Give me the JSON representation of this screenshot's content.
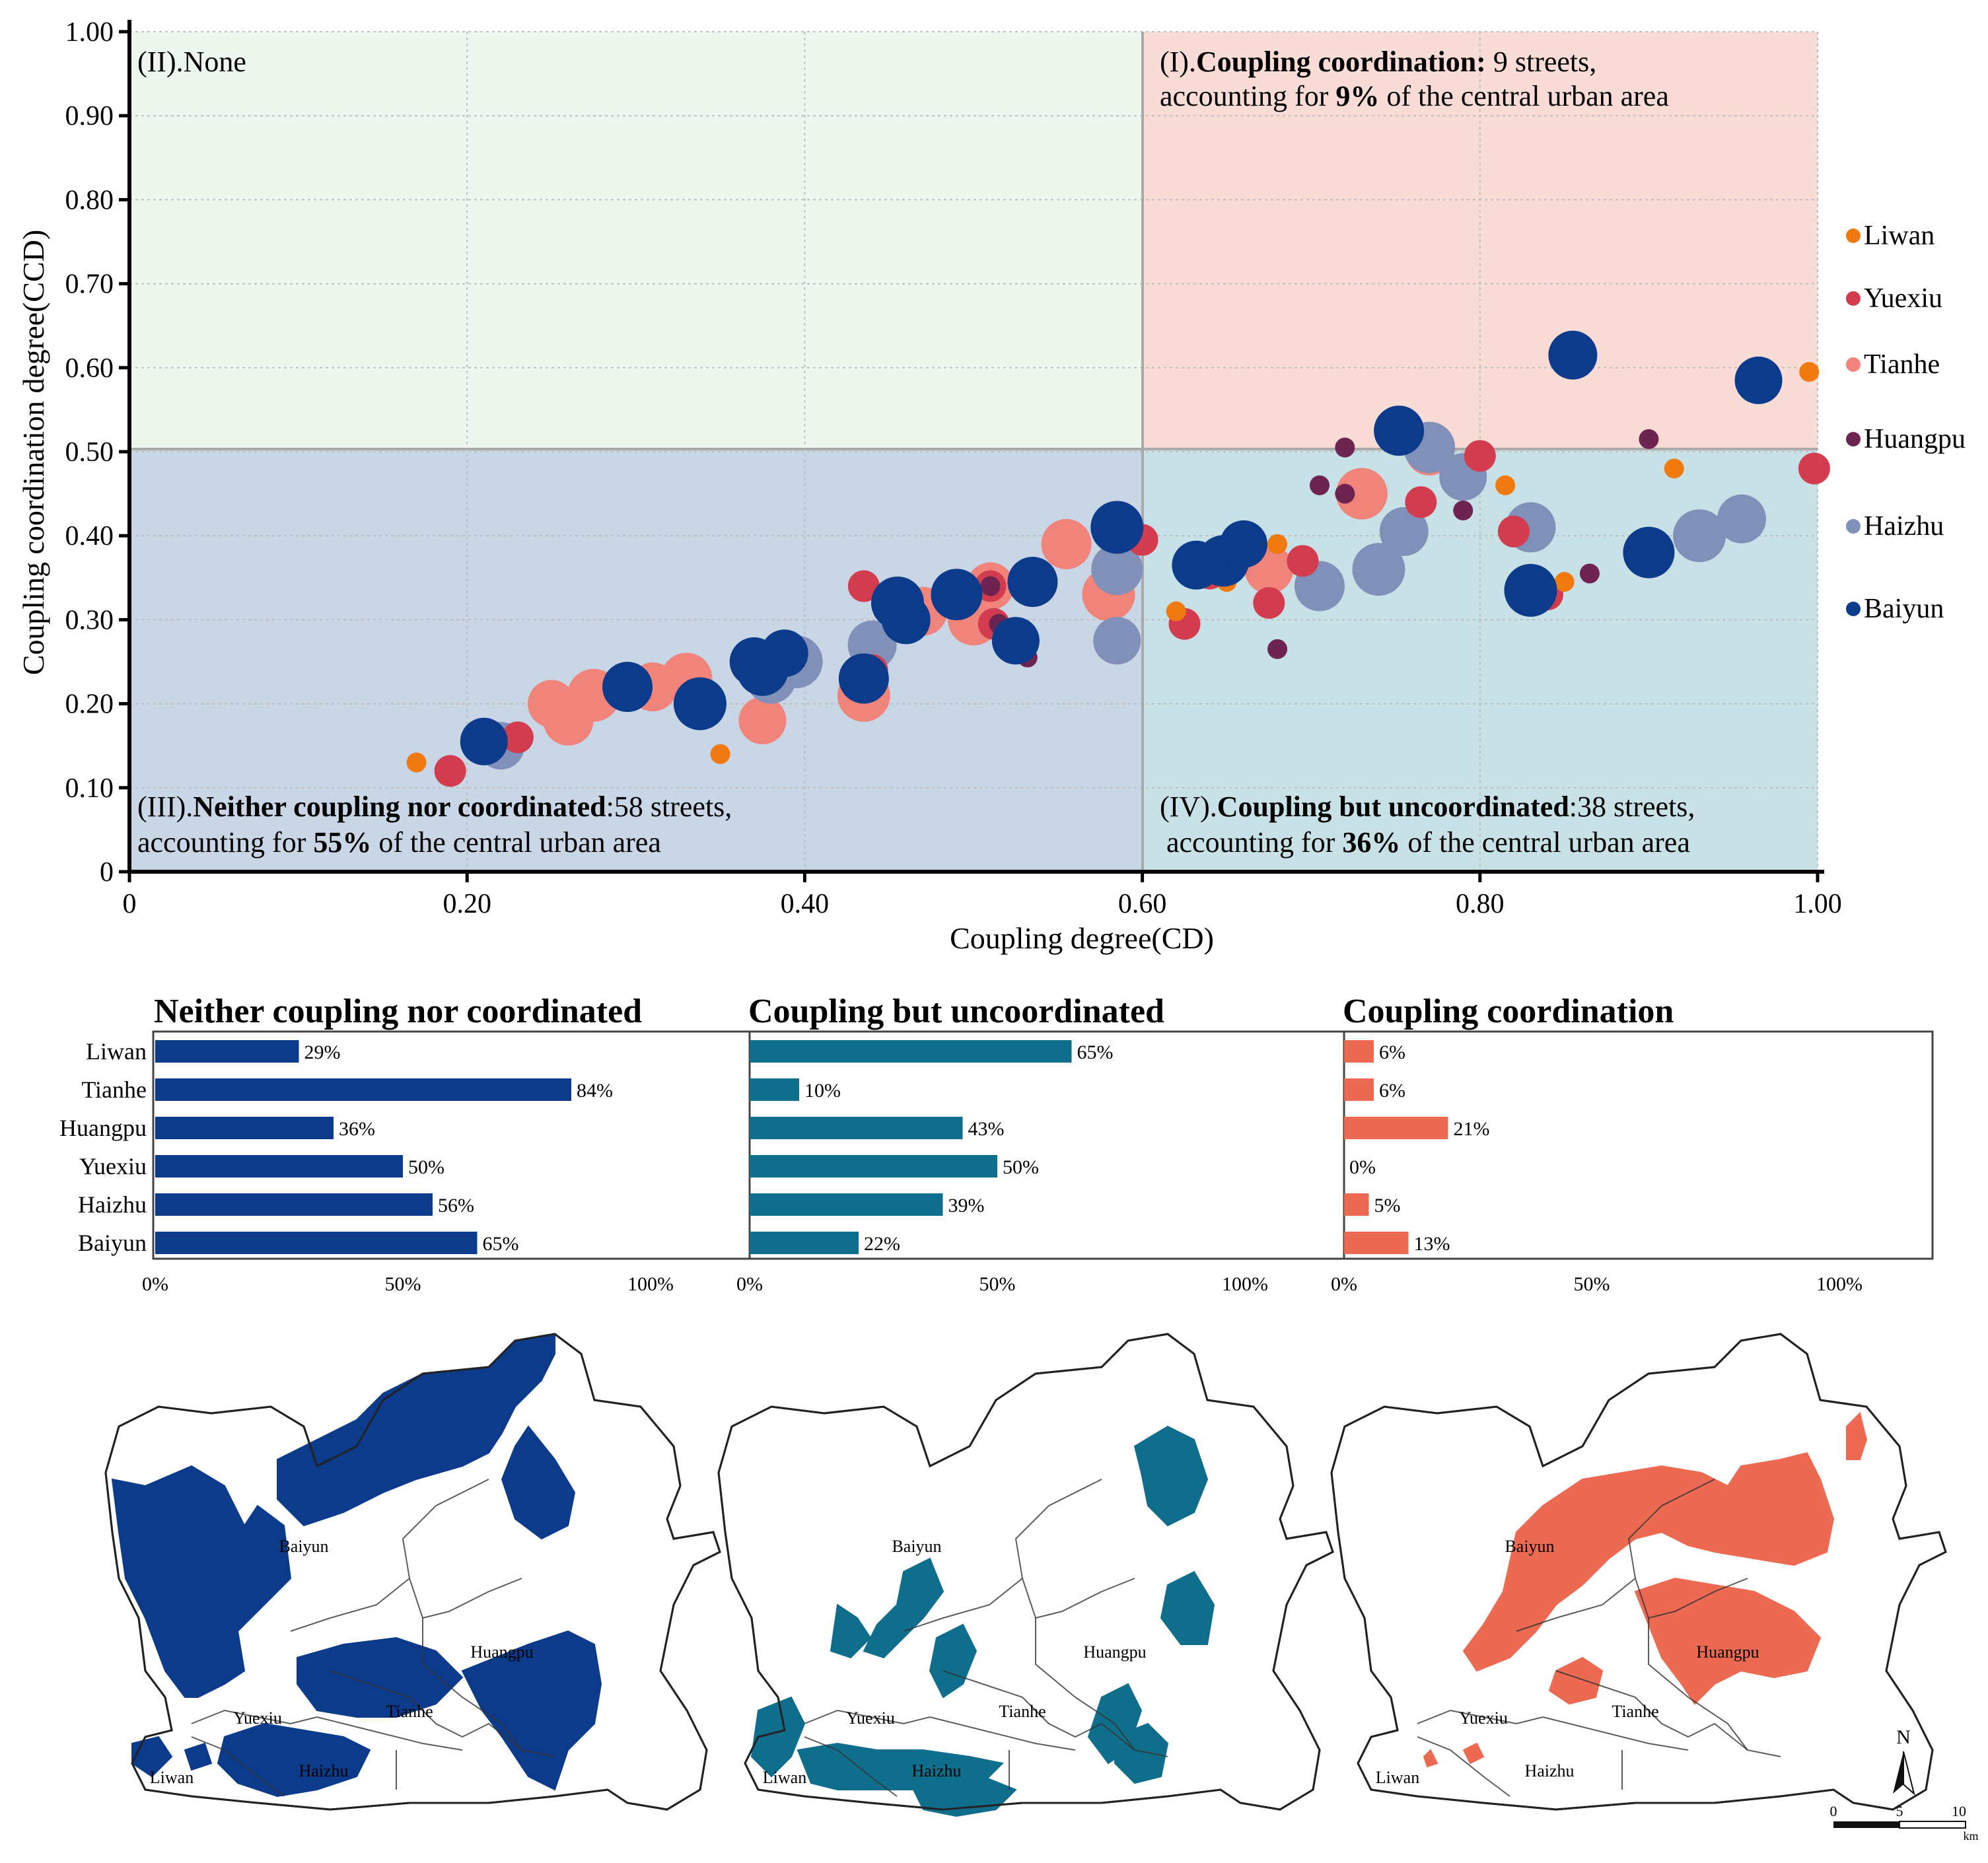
{
  "chart_data": [
    {
      "type": "scatter",
      "xlabel": "Coupling degree(CD)",
      "ylabel": "Coupling coordination degree(CCD)",
      "xlim": [
        0,
        1.0
      ],
      "ylim": [
        0,
        1.0
      ],
      "x_ticks": [
        "0",
        "0.20",
        "0.40",
        "0.60",
        "0.80",
        "1.00"
      ],
      "y_ticks": [
        "0",
        "0.10",
        "0.20",
        "0.30",
        "0.40",
        "0.50",
        "0.60",
        "0.70",
        "0.80",
        "0.90",
        "1.00"
      ],
      "grid": true,
      "legend_position": "right",
      "quadrants": {
        "q2": {
          "label": "(II).None"
        },
        "q1": {
          "prefix": "(I).",
          "title": "Coupling coordination:",
          "count_text": " 9 streets,",
          "line2_pre": "accounting for ",
          "pct": "9%",
          "line2_post": " of the central urban area"
        },
        "q3": {
          "prefix": "(III).",
          "title": "Neither coupling nor coordinated",
          "count_text": ":58 streets,",
          "line2_pre": "accounting for ",
          "pct": "55%",
          "line2_post": " of the central urban area"
        },
        "q4": {
          "prefix": "(IV).",
          "title": "Coupling but uncoordinated",
          "count_text": ":38 streets,",
          "line2_pre": "accounting for ",
          "pct": "36%",
          "line2_post": " of the central urban area"
        }
      },
      "series": [
        {
          "name": "Liwan",
          "color": "#f07a10",
          "size": "small",
          "points": [
            [
              0.17,
              0.13
            ],
            [
              0.35,
              0.14
            ],
            [
              0.62,
              0.31
            ],
            [
              0.65,
              0.345
            ],
            [
              0.68,
              0.39
            ],
            [
              0.815,
              0.46
            ],
            [
              0.85,
              0.345
            ],
            [
              0.915,
              0.48
            ],
            [
              0.995,
              0.595
            ]
          ]
        },
        {
          "name": "Yuexiu",
          "color": "#d23c4e",
          "size": "medium",
          "points": [
            [
              0.19,
              0.12
            ],
            [
              0.23,
              0.16
            ],
            [
              0.435,
              0.34
            ],
            [
              0.44,
              0.24
            ],
            [
              0.51,
              0.34
            ],
            [
              0.512,
              0.295
            ],
            [
              0.6,
              0.395
            ],
            [
              0.625,
              0.295
            ],
            [
              0.64,
              0.355
            ],
            [
              0.675,
              0.32
            ],
            [
              0.695,
              0.37
            ],
            [
              0.765,
              0.44
            ],
            [
              0.8,
              0.495
            ],
            [
              0.82,
              0.405
            ],
            [
              0.84,
              0.33
            ],
            [
              0.998,
              0.48
            ]
          ]
        },
        {
          "name": "Tianhe",
          "color": "#f0837a",
          "size": "large",
          "points": [
            [
              0.25,
              0.2
            ],
            [
              0.26,
              0.18
            ],
            [
              0.275,
              0.21
            ],
            [
              0.31,
              0.22
            ],
            [
              0.33,
              0.23
            ],
            [
              0.375,
              0.18
            ],
            [
              0.39,
              0.25
            ],
            [
              0.435,
              0.21
            ],
            [
              0.47,
              0.31
            ],
            [
              0.5,
              0.3
            ],
            [
              0.51,
              0.34
            ],
            [
              0.555,
              0.39
            ],
            [
              0.58,
              0.33
            ],
            [
              0.675,
              0.36
            ],
            [
              0.73,
              0.45
            ],
            [
              0.77,
              0.5
            ]
          ]
        },
        {
          "name": "Huangpu",
          "color": "#6e2450",
          "size": "small",
          "points": [
            [
              0.51,
              0.34
            ],
            [
              0.515,
              0.295
            ],
            [
              0.532,
              0.255
            ],
            [
              0.68,
              0.265
            ],
            [
              0.705,
              0.46
            ],
            [
              0.72,
              0.505
            ],
            [
              0.72,
              0.45
            ],
            [
              0.79,
              0.43
            ],
            [
              0.865,
              0.355
            ],
            [
              0.9,
              0.515
            ]
          ]
        },
        {
          "name": "Haizhu",
          "color": "#8090b8",
          "size": "large",
          "points": [
            [
              0.22,
              0.15
            ],
            [
              0.38,
              0.23
            ],
            [
              0.395,
              0.25
            ],
            [
              0.44,
              0.27
            ],
            [
              0.585,
              0.36
            ],
            [
              0.585,
              0.275
            ],
            [
              0.705,
              0.34
            ],
            [
              0.74,
              0.36
            ],
            [
              0.755,
              0.405
            ],
            [
              0.77,
              0.505
            ],
            [
              0.79,
              0.47
            ],
            [
              0.83,
              0.41
            ],
            [
              0.93,
              0.4
            ],
            [
              0.955,
              0.42
            ]
          ]
        },
        {
          "name": "Baiyun",
          "color": "#0c3b8c",
          "size": "large",
          "points": [
            [
              0.21,
              0.155
            ],
            [
              0.295,
              0.22
            ],
            [
              0.338,
              0.2
            ],
            [
              0.37,
              0.25
            ],
            [
              0.375,
              0.24
            ],
            [
              0.388,
              0.26
            ],
            [
              0.435,
              0.23
            ],
            [
              0.455,
              0.32
            ],
            [
              0.46,
              0.3
            ],
            [
              0.49,
              0.33
            ],
            [
              0.525,
              0.275
            ],
            [
              0.535,
              0.345
            ],
            [
              0.585,
              0.41
            ],
            [
              0.632,
              0.365
            ],
            [
              0.648,
              0.37
            ],
            [
              0.66,
              0.39
            ],
            [
              0.752,
              0.525
            ],
            [
              0.83,
              0.335
            ],
            [
              0.855,
              0.615
            ],
            [
              0.9,
              0.38
            ],
            [
              0.965,
              0.585
            ]
          ]
        }
      ]
    },
    {
      "type": "bar",
      "orientation": "horizontal",
      "categories": [
        "Liwan",
        "Tianhe",
        "Huangpu",
        "Yuexiu",
        "Haizhu",
        "Baiyun"
      ],
      "x_ticks": [
        "0%",
        "50%",
        "100%"
      ],
      "xlim": [
        0,
        100
      ],
      "panels": [
        {
          "title": "Neither coupling nor coordinated",
          "color": "#0c3b8c",
          "values": [
            29,
            84,
            36,
            50,
            56,
            65
          ],
          "labels": [
            "29%",
            "84%",
            "36%",
            "50%",
            "56%",
            "65%"
          ]
        },
        {
          "title": "Coupling but uncoordinated",
          "color": "#0f6e8c",
          "values": [
            65,
            10,
            43,
            50,
            39,
            22
          ],
          "labels": [
            "65%",
            "10%",
            "43%",
            "50%",
            "39%",
            "22%"
          ]
        },
        {
          "title": "Coupling coordination",
          "color": "#ec6a52",
          "values": [
            6,
            6,
            21,
            0,
            5,
            13
          ],
          "labels": [
            "6%",
            "6%",
            "21%",
            "0%",
            "5%",
            "13%"
          ]
        }
      ]
    }
  ],
  "maps": [
    {
      "name": "Neither coupling nor coordinated",
      "color": "#0c3b8c",
      "labels": [
        "Baiyun",
        "Huangpu",
        "Tianhe",
        "Yuexiu",
        "Haizhu",
        "Liwan"
      ]
    },
    {
      "name": "Coupling but uncoordinated",
      "color": "#0f6e8c",
      "labels": [
        "Baiyun",
        "Huangpu",
        "Tianhe",
        "Yuexiu",
        "Haizhu",
        "Liwan"
      ]
    },
    {
      "name": "Coupling coordination",
      "color": "#ec6a52",
      "labels": [
        "Baiyun",
        "Huangpu",
        "Tianhe",
        "Yuexiu",
        "Haizhu",
        "Liwan"
      ]
    }
  ],
  "compass": {
    "label": "N"
  },
  "scale_bar": {
    "ticks": [
      "0",
      "5",
      "10"
    ],
    "unit": "km"
  }
}
